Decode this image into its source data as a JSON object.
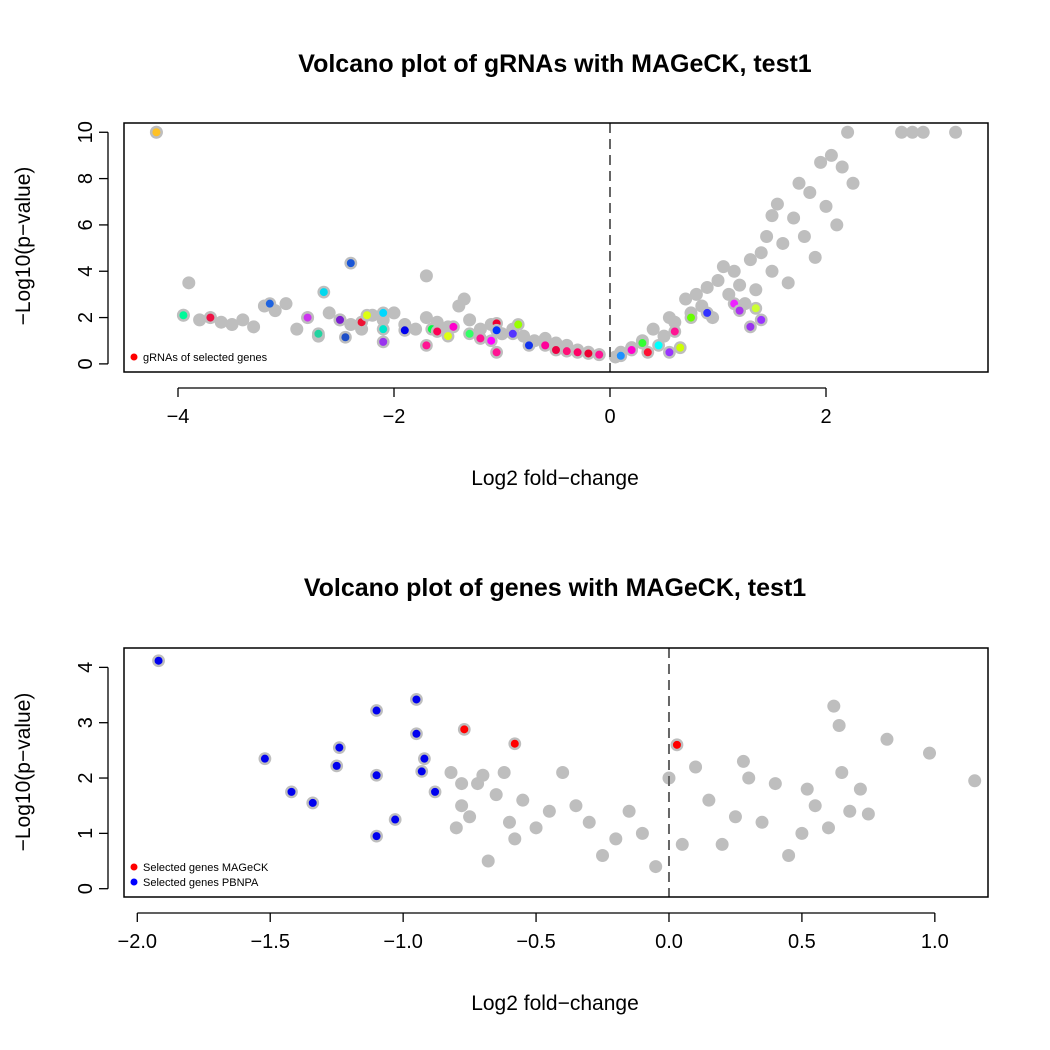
{
  "chart_data": [
    {
      "type": "scatter",
      "title": "Volcano plot of gRNAs with MAGeCK, test1",
      "xlabel": "Log2 fold−change",
      "ylabel": "−Log10(p−value)",
      "xlim": [
        -4.5,
        3.5
      ],
      "ylim": [
        -0.35,
        10.4
      ],
      "xticks": [
        -4,
        -2,
        0,
        2
      ],
      "xtick_labels": [
        "−4",
        "−2",
        "0",
        "2"
      ],
      "yticks": [
        0,
        2,
        4,
        6,
        8,
        10
      ],
      "ytick_labels": [
        "0",
        "2",
        "4",
        "6",
        "8",
        "10"
      ],
      "grid": false,
      "vline_x": 0,
      "legend_position": "bottom-left",
      "legend": [
        {
          "label": "gRNAs of selected genes",
          "color": "#ff0000"
        }
      ],
      "background_color": "#bebebe",
      "background_points": [
        [
          -4.2,
          10
        ],
        [
          -3.95,
          2.1
        ],
        [
          -3.9,
          3.5
        ],
        [
          -3.8,
          1.9
        ],
        [
          -3.7,
          2.0
        ],
        [
          -3.6,
          1.8
        ],
        [
          -3.5,
          1.7
        ],
        [
          -3.4,
          1.9
        ],
        [
          -3.3,
          1.6
        ],
        [
          -3.2,
          2.5
        ],
        [
          -3.1,
          2.3
        ],
        [
          -3.0,
          2.6
        ],
        [
          -2.9,
          1.5
        ],
        [
          -2.8,
          2.0
        ],
        [
          -2.7,
          1.2
        ],
        [
          -2.6,
          2.2
        ],
        [
          -2.5,
          1.9
        ],
        [
          -2.4,
          1.7
        ],
        [
          -2.3,
          1.5
        ],
        [
          -2.2,
          2.1
        ],
        [
          -2.1,
          1.9
        ],
        [
          -2.0,
          2.2
        ],
        [
          -1.9,
          1.7
        ],
        [
          -1.8,
          1.5
        ],
        [
          -1.7,
          3.8
        ],
        [
          -1.7,
          2.0
        ],
        [
          -1.6,
          1.8
        ],
        [
          -1.5,
          1.6
        ],
        [
          -1.4,
          2.5
        ],
        [
          -1.35,
          2.8
        ],
        [
          -1.3,
          1.9
        ],
        [
          -1.2,
          1.5
        ],
        [
          -1.1,
          1.7
        ],
        [
          -1.0,
          1.3
        ],
        [
          -0.9,
          1.5
        ],
        [
          -0.8,
          1.2
        ],
        [
          -0.7,
          1.0
        ],
        [
          -0.6,
          1.1
        ],
        [
          -0.5,
          0.9
        ],
        [
          -0.4,
          0.8
        ],
        [
          -0.3,
          0.6
        ],
        [
          -0.2,
          0.5
        ],
        [
          -0.1,
          0.4
        ],
        [
          0.05,
          0.3
        ],
        [
          0.1,
          0.5
        ],
        [
          0.2,
          0.7
        ],
        [
          0.3,
          1.0
        ],
        [
          0.4,
          1.5
        ],
        [
          0.5,
          1.2
        ],
        [
          0.55,
          2.0
        ],
        [
          0.6,
          1.8
        ],
        [
          0.7,
          2.8
        ],
        [
          0.75,
          2.2
        ],
        [
          0.8,
          3.0
        ],
        [
          0.85,
          2.5
        ],
        [
          0.9,
          3.3
        ],
        [
          0.95,
          2.0
        ],
        [
          1.0,
          3.6
        ],
        [
          1.05,
          4.2
        ],
        [
          1.1,
          3.0
        ],
        [
          1.15,
          4.0
        ],
        [
          1.2,
          3.4
        ],
        [
          1.25,
          2.6
        ],
        [
          1.3,
          4.5
        ],
        [
          1.35,
          3.2
        ],
        [
          1.4,
          4.8
        ],
        [
          1.45,
          5.5
        ],
        [
          1.5,
          6.4
        ],
        [
          1.5,
          4.0
        ],
        [
          1.55,
          6.9
        ],
        [
          1.6,
          5.2
        ],
        [
          1.65,
          3.5
        ],
        [
          1.7,
          6.3
        ],
        [
          1.75,
          7.8
        ],
        [
          1.8,
          5.5
        ],
        [
          1.85,
          7.4
        ],
        [
          1.9,
          4.6
        ],
        [
          1.95,
          8.7
        ],
        [
          2.0,
          6.8
        ],
        [
          2.05,
          9.0
        ],
        [
          2.1,
          6.0
        ],
        [
          2.15,
          8.5
        ],
        [
          2.2,
          10.0
        ],
        [
          2.25,
          7.8
        ],
        [
          2.7,
          10.0
        ],
        [
          2.8,
          10.0
        ],
        [
          2.9,
          10.0
        ],
        [
          3.2,
          10.0
        ]
      ],
      "highlight_points": [
        {
          "x": -4.2,
          "y": 10.0,
          "color": "#ffc125"
        },
        {
          "x": -3.95,
          "y": 2.1,
          "color": "#00fa9a"
        },
        {
          "x": -3.7,
          "y": 2.0,
          "color": "#ee1144"
        },
        {
          "x": -3.15,
          "y": 2.6,
          "color": "#1e63e0"
        },
        {
          "x": -2.8,
          "y": 2.0,
          "color": "#cc33ee"
        },
        {
          "x": -2.7,
          "y": 1.3,
          "color": "#22d3a0"
        },
        {
          "x": -2.65,
          "y": 3.1,
          "color": "#00d8ee"
        },
        {
          "x": -2.5,
          "y": 1.9,
          "color": "#7a1ccf"
        },
        {
          "x": -2.45,
          "y": 1.15,
          "color": "#1f4fc8"
        },
        {
          "x": -2.4,
          "y": 4.35,
          "color": "#1a56d6"
        },
        {
          "x": -2.3,
          "y": 1.8,
          "color": "#ee1133"
        },
        {
          "x": -2.25,
          "y": 2.1,
          "color": "#ddff11"
        },
        {
          "x": -2.1,
          "y": 2.2,
          "color": "#00d7ff"
        },
        {
          "x": -2.1,
          "y": 1.5,
          "color": "#00e5cc"
        },
        {
          "x": -2.1,
          "y": 0.95,
          "color": "#9933ee"
        },
        {
          "x": -1.9,
          "y": 1.45,
          "color": "#0000ee"
        },
        {
          "x": -1.7,
          "y": 0.8,
          "color": "#ff1493"
        },
        {
          "x": -1.65,
          "y": 1.5,
          "color": "#00ff44"
        },
        {
          "x": -1.6,
          "y": 1.4,
          "color": "#ff0055"
        },
        {
          "x": -1.5,
          "y": 1.2,
          "color": "#ddff11"
        },
        {
          "x": -1.45,
          "y": 1.6,
          "color": "#ff00cc"
        },
        {
          "x": -1.3,
          "y": 1.3,
          "color": "#33ff66"
        },
        {
          "x": -1.2,
          "y": 1.1,
          "color": "#ff1493"
        },
        {
          "x": -1.1,
          "y": 1.0,
          "color": "#ff00ff"
        },
        {
          "x": -1.05,
          "y": 1.75,
          "color": "#ee0033"
        },
        {
          "x": -1.05,
          "y": 1.45,
          "color": "#0033ff"
        },
        {
          "x": -1.05,
          "y": 0.5,
          "color": "#ff1493"
        },
        {
          "x": -0.9,
          "y": 1.3,
          "color": "#5533ff"
        },
        {
          "x": -0.85,
          "y": 1.7,
          "color": "#99ff00"
        },
        {
          "x": -0.75,
          "y": 0.8,
          "color": "#1133ee"
        },
        {
          "x": -0.6,
          "y": 0.8,
          "color": "#ff0099"
        },
        {
          "x": -0.5,
          "y": 0.6,
          "color": "#ee0044"
        },
        {
          "x": -0.4,
          "y": 0.55,
          "color": "#ff1177"
        },
        {
          "x": -0.3,
          "y": 0.5,
          "color": "#ff0066"
        },
        {
          "x": -0.2,
          "y": 0.45,
          "color": "#ee0033"
        },
        {
          "x": -0.1,
          "y": 0.4,
          "color": "#ff1493"
        },
        {
          "x": 0.1,
          "y": 0.35,
          "color": "#1e90ff"
        },
        {
          "x": 0.2,
          "y": 0.6,
          "color": "#ff00cc"
        },
        {
          "x": 0.3,
          "y": 0.9,
          "color": "#33ff33"
        },
        {
          "x": 0.35,
          "y": 0.5,
          "color": "#ff1133"
        },
        {
          "x": 0.45,
          "y": 0.8,
          "color": "#00ffff"
        },
        {
          "x": 0.55,
          "y": 0.5,
          "color": "#9933ff"
        },
        {
          "x": 0.6,
          "y": 1.4,
          "color": "#ff1493"
        },
        {
          "x": 0.65,
          "y": 0.7,
          "color": "#ccff00"
        },
        {
          "x": 0.75,
          "y": 2.0,
          "color": "#66ff00"
        },
        {
          "x": 0.9,
          "y": 2.2,
          "color": "#3333ff"
        },
        {
          "x": 1.15,
          "y": 2.6,
          "color": "#ee22ff"
        },
        {
          "x": 1.2,
          "y": 2.3,
          "color": "#aa33ee"
        },
        {
          "x": 1.3,
          "y": 1.6,
          "color": "#9933ee"
        },
        {
          "x": 1.35,
          "y": 2.4,
          "color": "#ccff33"
        },
        {
          "x": 1.4,
          "y": 1.9,
          "color": "#9933ff"
        }
      ]
    },
    {
      "type": "scatter",
      "title": "Volcano plot of genes with MAGeCK, test1",
      "xlabel": "Log2 fold−change",
      "ylabel": "−Log10(p−value)",
      "xlim": [
        -2.05,
        1.2
      ],
      "ylim": [
        -0.15,
        4.35
      ],
      "xticks": [
        -2.0,
        -1.5,
        -1.0,
        -0.5,
        0.0,
        0.5,
        1.0
      ],
      "xtick_labels": [
        "−2.0",
        "−1.5",
        "−1.0",
        "−0.5",
        "0.0",
        "0.5",
        "1.0"
      ],
      "yticks": [
        0,
        1,
        2,
        3,
        4
      ],
      "ytick_labels": [
        "0",
        "1",
        "2",
        "3",
        "4"
      ],
      "grid": false,
      "vline_x": 0,
      "legend_position": "bottom-left",
      "legend": [
        {
          "label": "Selected genes MAGeCK",
          "color": "#ff0000"
        },
        {
          "label": "Selected genes PBNPA",
          "color": "#0000ff"
        }
      ],
      "background_color": "#bebebe",
      "background_points": [
        [
          -0.82,
          2.1
        ],
        [
          -0.78,
          1.9
        ],
        [
          -0.78,
          1.5
        ],
        [
          -0.8,
          1.1
        ],
        [
          -0.75,
          1.3
        ],
        [
          -0.72,
          1.9
        ],
        [
          -0.7,
          2.05
        ],
        [
          -0.68,
          0.5
        ],
        [
          -0.65,
          1.7
        ],
        [
          -0.62,
          2.1
        ],
        [
          -0.6,
          1.2
        ],
        [
          -0.58,
          0.9
        ],
        [
          -0.55,
          1.6
        ],
        [
          -0.5,
          1.1
        ],
        [
          -0.45,
          1.4
        ],
        [
          -0.4,
          2.1
        ],
        [
          -0.35,
          1.5
        ],
        [
          -0.3,
          1.2
        ],
        [
          -0.25,
          0.6
        ],
        [
          -0.2,
          0.9
        ],
        [
          -0.15,
          1.4
        ],
        [
          -0.1,
          1.0
        ],
        [
          -0.05,
          0.4
        ],
        [
          0.0,
          2.0
        ],
        [
          0.05,
          0.8
        ],
        [
          0.1,
          2.2
        ],
        [
          0.15,
          1.6
        ],
        [
          0.2,
          0.8
        ],
        [
          0.25,
          1.3
        ],
        [
          0.28,
          2.3
        ],
        [
          0.3,
          2.0
        ],
        [
          0.35,
          1.2
        ],
        [
          0.4,
          1.9
        ],
        [
          0.45,
          0.6
        ],
        [
          0.5,
          1.0
        ],
        [
          0.52,
          1.8
        ],
        [
          0.55,
          1.5
        ],
        [
          0.6,
          1.1
        ],
        [
          0.62,
          3.3
        ],
        [
          0.64,
          2.95
        ],
        [
          0.65,
          2.1
        ],
        [
          0.68,
          1.4
        ],
        [
          0.72,
          1.8
        ],
        [
          0.75,
          1.35
        ],
        [
          0.82,
          2.7
        ],
        [
          0.98,
          2.45
        ],
        [
          1.15,
          1.95
        ]
      ],
      "highlight_points": [
        {
          "x": -1.92,
          "y": 4.12,
          "color": "#0000ee"
        },
        {
          "x": -1.52,
          "y": 2.35,
          "color": "#0000ee"
        },
        {
          "x": -1.42,
          "y": 1.75,
          "color": "#0000ee"
        },
        {
          "x": -1.34,
          "y": 1.55,
          "color": "#0000ee"
        },
        {
          "x": -1.25,
          "y": 2.22,
          "color": "#0000ee"
        },
        {
          "x": -1.24,
          "y": 2.55,
          "color": "#0000ee"
        },
        {
          "x": -1.1,
          "y": 3.22,
          "color": "#0000ee"
        },
        {
          "x": -1.1,
          "y": 2.05,
          "color": "#0000ee"
        },
        {
          "x": -1.1,
          "y": 0.95,
          "color": "#0000ee"
        },
        {
          "x": -1.03,
          "y": 1.25,
          "color": "#0000ee"
        },
        {
          "x": -0.95,
          "y": 3.42,
          "color": "#0000ee"
        },
        {
          "x": -0.95,
          "y": 2.8,
          "color": "#0000ee"
        },
        {
          "x": -0.93,
          "y": 2.12,
          "color": "#0000ee"
        },
        {
          "x": -0.92,
          "y": 2.35,
          "color": "#0000ee"
        },
        {
          "x": -0.88,
          "y": 1.75,
          "color": "#0000ee"
        },
        {
          "x": -0.77,
          "y": 2.88,
          "color": "#ff0000"
        },
        {
          "x": -0.58,
          "y": 2.62,
          "color": "#ff0000"
        },
        {
          "x": 0.03,
          "y": 2.6,
          "color": "#ff0000"
        }
      ]
    }
  ]
}
